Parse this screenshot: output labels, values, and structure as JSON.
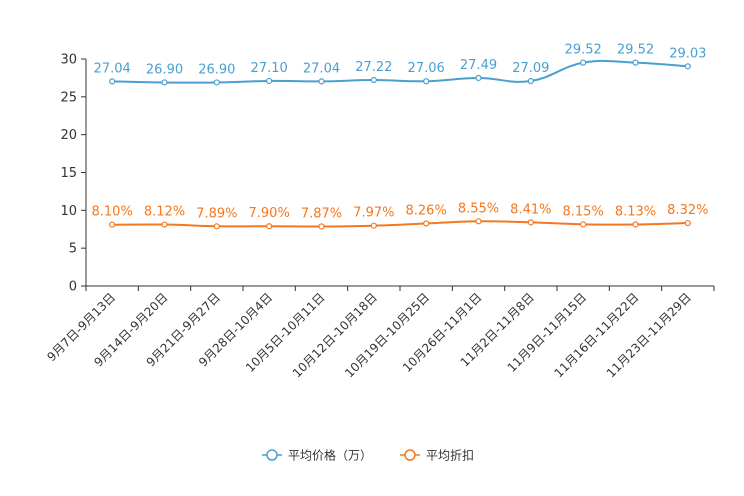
{
  "chart_data": {
    "type": "line",
    "title": "",
    "xlabel": "",
    "ylabel": "",
    "ylim": [
      0,
      30
    ],
    "yticks": [
      0,
      5,
      10,
      15,
      20,
      25,
      30
    ],
    "categories": [
      "9月7日-9月13日",
      "9月14日-9月20日",
      "9月21日-9月27日",
      "9月28日-10月4日",
      "10月5日-10月11日",
      "10月12日-10月18日",
      "10月19日-10月25日",
      "10月26日-11月1日",
      "11月2日-11月8日",
      "11月9日-11月15日",
      "11月16日-11月22日",
      "11月23日-11月29日"
    ],
    "series": [
      {
        "name": "平均价格（万）",
        "color": "#4a9fd1",
        "values": [
          27.04,
          26.9,
          26.9,
          27.1,
          27.04,
          27.22,
          27.06,
          27.49,
          27.09,
          29.52,
          29.52,
          29.03
        ],
        "labels": [
          "27.04",
          "26.90",
          "26.90",
          "27.10",
          "27.04",
          "27.22",
          "27.06",
          "27.49",
          "27.09",
          "29.52",
          "29.52",
          "29.03"
        ]
      },
      {
        "name": "平均折扣",
        "color": "#f5781e",
        "values": [
          8.1,
          8.12,
          7.89,
          7.9,
          7.87,
          7.97,
          8.26,
          8.55,
          8.41,
          8.15,
          8.13,
          8.32
        ],
        "labels": [
          "8.10%",
          "8.12%",
          "7.89%",
          "7.90%",
          "7.87%",
          "7.97%",
          "8.26%",
          "8.55%",
          "8.41%",
          "8.15%",
          "8.13%",
          "8.32%"
        ]
      }
    ],
    "legend_position": "bottom-center",
    "grid": false
  }
}
